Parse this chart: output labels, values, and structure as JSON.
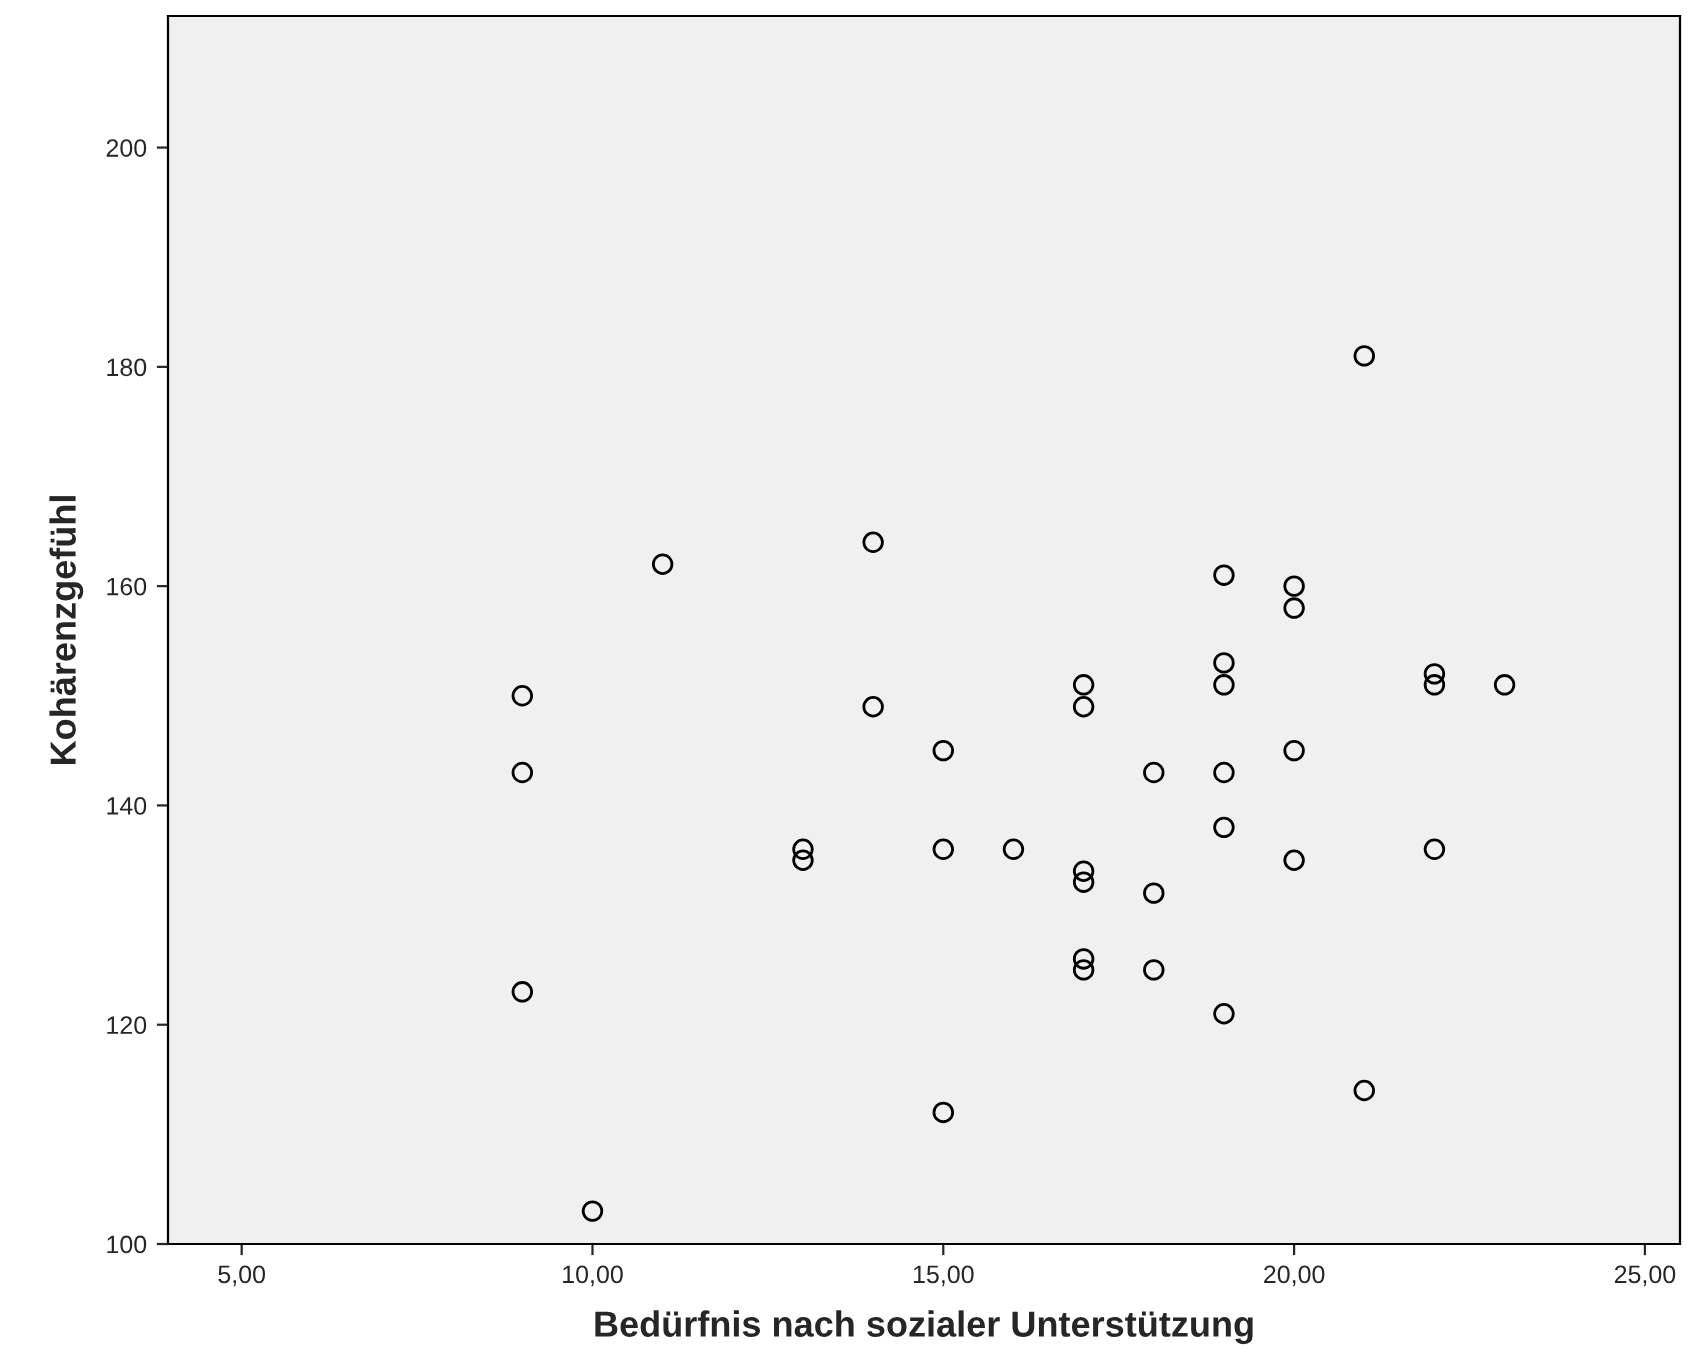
{
  "chart_data": {
    "type": "scatter",
    "xlabel": "Bedürfnis nach sozialer Unterstützung",
    "ylabel": "Kohärenzgefühl",
    "x": [
      9,
      9,
      9,
      10,
      11,
      13,
      13,
      14,
      14,
      15,
      15,
      15,
      16,
      17,
      17,
      17,
      17,
      17,
      17,
      18,
      18,
      18,
      19,
      19,
      19,
      19,
      19,
      19,
      20,
      20,
      20,
      20,
      21,
      21,
      22,
      22,
      22,
      23
    ],
    "series": [
      {
        "color": "#000000",
        "values": [
          150,
          143,
          123,
          103,
          162,
          136,
          135,
          164,
          149,
          145,
          136,
          112,
          136,
          151,
          149,
          134,
          133,
          126,
          125,
          143,
          132,
          125,
          161,
          153,
          151,
          143,
          138,
          121,
          160,
          158,
          145,
          135,
          181,
          114,
          152,
          151,
          136,
          151
        ]
      }
    ],
    "xlim": [
      3.95,
      25.5
    ],
    "ylim": [
      100,
      212
    ],
    "xticks": [
      {
        "value": 5,
        "label": "5,00"
      },
      {
        "value": 10,
        "label": "10,00"
      },
      {
        "value": 15,
        "label": "15,00"
      },
      {
        "value": 20,
        "label": "20,00"
      },
      {
        "value": 25,
        "label": "25,00"
      }
    ],
    "yticks": [
      100,
      120,
      140,
      160,
      180,
      200
    ],
    "marker": "circle",
    "grid": false,
    "legend": false
  }
}
